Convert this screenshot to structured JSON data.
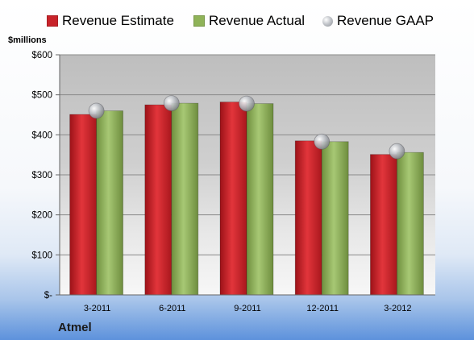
{
  "chart_data": {
    "type": "bar",
    "categories": [
      "3-2011",
      "6-2011",
      "9-2011",
      "12-2011",
      "3-2012"
    ],
    "series": [
      {
        "name": "Revenue Estimate",
        "kind": "bar",
        "color": "#c8232a",
        "values": [
          451,
          475,
          482,
          385,
          351
        ]
      },
      {
        "name": "Revenue Actual",
        "kind": "bar",
        "color": "#8fb358",
        "values": [
          460,
          479,
          478,
          383,
          356
        ]
      },
      {
        "name": "Revenue GAAP",
        "kind": "marker",
        "color": "#b8bbc0",
        "values": [
          460,
          479,
          478,
          383,
          359
        ]
      }
    ],
    "y_tick_values": [
      0,
      100,
      200,
      300,
      400,
      500,
      600
    ],
    "y_tick_labels": [
      "$-",
      "$100",
      "$200",
      "$300",
      "$400",
      "$500",
      "$600"
    ],
    "ylabel": "$millions",
    "ylim": [
      0,
      600
    ],
    "grid": true,
    "legend_position": "top"
  },
  "company": "Atmel"
}
